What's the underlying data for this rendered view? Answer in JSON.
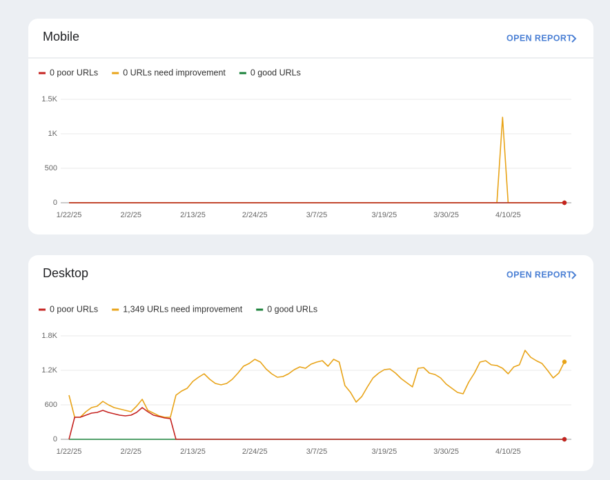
{
  "chart_data": [
    {
      "type": "line",
      "title": "Mobile",
      "link": "OPEN REPORT",
      "categories": [
        "1/22/25",
        null,
        null,
        null,
        null,
        null,
        null,
        null,
        null,
        null,
        null,
        "2/2/25",
        null,
        null,
        null,
        null,
        null,
        null,
        null,
        null,
        null,
        null,
        "2/13/25",
        null,
        null,
        null,
        null,
        null,
        null,
        null,
        null,
        null,
        null,
        "2/24/25",
        null,
        null,
        null,
        null,
        null,
        null,
        null,
        null,
        null,
        null,
        "3/7/25",
        null,
        null,
        null,
        null,
        null,
        null,
        null,
        null,
        null,
        null,
        null,
        "3/19/25",
        null,
        null,
        null,
        null,
        null,
        null,
        null,
        null,
        null,
        null,
        "3/30/25",
        null,
        null,
        null,
        null,
        null,
        null,
        null,
        null,
        null,
        null,
        "4/10/25",
        null,
        null,
        null,
        null,
        null,
        null,
        null,
        null,
        null,
        null
      ],
      "ylim": [
        0,
        1500
      ],
      "yticks": [
        0,
        500,
        {
          "value": 1000,
          "label": "1K"
        },
        {
          "value": 1500,
          "label": "1.5K"
        }
      ],
      "grid": true,
      "series": [
        {
          "name": "0 poor URLs",
          "color": "#c5221f",
          "values": [
            0,
            0,
            0,
            0,
            0,
            0,
            0,
            0,
            0,
            0,
            0,
            0,
            0,
            0,
            0,
            0,
            0,
            0,
            0,
            0,
            0,
            0,
            0,
            0,
            0,
            0,
            0,
            0,
            0,
            0,
            0,
            0,
            0,
            0,
            0,
            0,
            0,
            0,
            0,
            0,
            0,
            0,
            0,
            0,
            0,
            0,
            0,
            0,
            0,
            0,
            0,
            0,
            0,
            0,
            0,
            0,
            0,
            0,
            0,
            0,
            0,
            0,
            0,
            0,
            0,
            0,
            0,
            0,
            0,
            0,
            0,
            0,
            0,
            0,
            0,
            0,
            0,
            0,
            0,
            0,
            0,
            0,
            0,
            0,
            0,
            0,
            0,
            0,
            0
          ]
        },
        {
          "name": "0 URLs need improvement",
          "color": "#e8a317",
          "values": [
            0,
            0,
            0,
            0,
            0,
            0,
            0,
            0,
            0,
            0,
            0,
            0,
            0,
            0,
            0,
            0,
            0,
            0,
            0,
            0,
            0,
            0,
            0,
            0,
            0,
            0,
            0,
            0,
            0,
            0,
            0,
            0,
            0,
            0,
            0,
            0,
            0,
            0,
            0,
            0,
            0,
            0,
            0,
            0,
            0,
            0,
            0,
            0,
            0,
            0,
            0,
            0,
            0,
            0,
            0,
            0,
            0,
            0,
            0,
            0,
            0,
            0,
            0,
            0,
            0,
            0,
            0,
            0,
            0,
            0,
            0,
            0,
            0,
            0,
            0,
            0,
            0,
            1240,
            0,
            0,
            0,
            0,
            0,
            0,
            0,
            0,
            0,
            0,
            0
          ]
        },
        {
          "name": "0 good URLs",
          "color": "#188038",
          "values": [
            0,
            0,
            0,
            0,
            0,
            0,
            0,
            0,
            0,
            0,
            0,
            0,
            0,
            0,
            0,
            0,
            0,
            0,
            0,
            0,
            0,
            0,
            0,
            0,
            0,
            0,
            0,
            0,
            0,
            0,
            0,
            0,
            0,
            0,
            0,
            0,
            0,
            0,
            0,
            0,
            0,
            0,
            0,
            0,
            0,
            0,
            0,
            0,
            0,
            0,
            0,
            0,
            0,
            0,
            0,
            0,
            0,
            0,
            0,
            0,
            0,
            0,
            0,
            0,
            0,
            0,
            0,
            0,
            0,
            0,
            0,
            0,
            0,
            0,
            0,
            0,
            0,
            0,
            0,
            0,
            0,
            0,
            0,
            0,
            0,
            0,
            0,
            0,
            0
          ]
        }
      ]
    },
    {
      "type": "line",
      "title": "Desktop",
      "link": "OPEN REPORT",
      "categories": [
        "1/22/25",
        null,
        null,
        null,
        null,
        null,
        null,
        null,
        null,
        null,
        null,
        "2/2/25",
        null,
        null,
        null,
        null,
        null,
        null,
        null,
        null,
        null,
        null,
        "2/13/25",
        null,
        null,
        null,
        null,
        null,
        null,
        null,
        null,
        null,
        null,
        "2/24/25",
        null,
        null,
        null,
        null,
        null,
        null,
        null,
        null,
        null,
        null,
        "3/7/25",
        null,
        null,
        null,
        null,
        null,
        null,
        null,
        null,
        null,
        null,
        null,
        "3/19/25",
        null,
        null,
        null,
        null,
        null,
        null,
        null,
        null,
        null,
        null,
        "3/30/25",
        null,
        null,
        null,
        null,
        null,
        null,
        null,
        null,
        null,
        null,
        "4/10/25",
        null,
        null,
        null,
        null,
        null,
        null,
        null,
        null,
        null,
        null
      ],
      "ylim": [
        0,
        1800
      ],
      "yticks": [
        0,
        600,
        {
          "value": 1200,
          "label": "1.2K"
        },
        {
          "value": 1800,
          "label": "1.8K"
        }
      ],
      "grid": true,
      "series": [
        {
          "name": "0 poor URLs",
          "color": "#c5221f",
          "values": [
            0,
            384,
            384,
            420,
            456,
            468,
            504,
            468,
            444,
            420,
            408,
            420,
            468,
            552,
            480,
            420,
            396,
            372,
            360,
            0,
            0,
            0,
            0,
            0,
            0,
            0,
            0,
            0,
            0,
            0,
            0,
            0,
            0,
            0,
            0,
            0,
            0,
            0,
            0,
            0,
            0,
            0,
            0,
            0,
            0,
            0,
            0,
            0,
            0,
            0,
            0,
            0,
            0,
            0,
            0,
            0,
            0,
            0,
            0,
            0,
            0,
            0,
            0,
            0,
            0,
            0,
            0,
            0,
            0,
            0,
            0,
            0,
            0,
            0,
            0,
            0,
            0,
            0,
            0,
            0,
            0,
            0,
            0,
            0,
            0,
            0,
            0,
            0,
            0
          ]
        },
        {
          "name": "1,349 URLs need improvement",
          "color": "#e8a317",
          "values": [
            768,
            384,
            384,
            480,
            552,
            576,
            660,
            600,
            552,
            528,
            504,
            480,
            576,
            696,
            504,
            456,
            408,
            384,
            384,
            768,
            840,
            888,
            1008,
            1080,
            1140,
            1044,
            972,
            948,
            972,
            1044,
            1152,
            1272,
            1320,
            1392,
            1344,
            1224,
            1140,
            1080,
            1092,
            1140,
            1212,
            1260,
            1236,
            1308,
            1344,
            1368,
            1272,
            1392,
            1344,
            936,
            816,
            648,
            744,
            912,
            1068,
            1152,
            1212,
            1224,
            1152,
            1056,
            984,
            912,
            1236,
            1248,
            1152,
            1128,
            1068,
            960,
            888,
            816,
            792,
            996,
            1152,
            1344,
            1368,
            1296,
            1284,
            1236,
            1140,
            1260,
            1296,
            1548,
            1428,
            1368,
            1320,
            1200,
            1068,
            1152,
            1349
          ]
        },
        {
          "name": "0 good URLs",
          "color": "#188038",
          "values": [
            0,
            0,
            0,
            0,
            0,
            0,
            0,
            0,
            0,
            0,
            0,
            0,
            0,
            0,
            0,
            0,
            0,
            0,
            0,
            0,
            0,
            0,
            0,
            0,
            0,
            0,
            0,
            0,
            0,
            0,
            0,
            0,
            0,
            0,
            0,
            0,
            0,
            0,
            0,
            0,
            0,
            0,
            0,
            0,
            0,
            0,
            0,
            0,
            0,
            0,
            0,
            0,
            0,
            0,
            0,
            0,
            0,
            0,
            0,
            0,
            0,
            0,
            0,
            0,
            0,
            0,
            0,
            0,
            0,
            0,
            0,
            0,
            0,
            0,
            0,
            0,
            0,
            0,
            0,
            0,
            0,
            0,
            0,
            0,
            0,
            0,
            0,
            0,
            0
          ]
        }
      ]
    }
  ]
}
